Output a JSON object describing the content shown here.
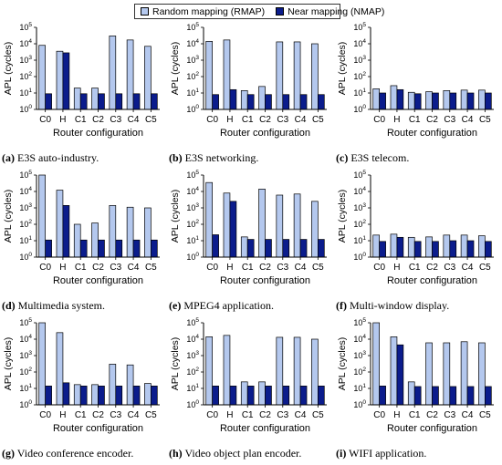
{
  "legend": {
    "rmap_label": "Random mapping (RMAP)",
    "nmap_label": "Near mapping (NMAP)"
  },
  "colors": {
    "rmap": "#b4c8ee",
    "nmap": "#0b1c8c",
    "stroke": "#000000"
  },
  "axis": {
    "ylabel": "APL (cycles)",
    "xlabel": "Router configuration",
    "yticks": [
      {
        "b": "10",
        "e": "0"
      },
      {
        "b": "10",
        "e": "1"
      },
      {
        "b": "10",
        "e": "2"
      },
      {
        "b": "10",
        "e": "3"
      },
      {
        "b": "10",
        "e": "4"
      },
      {
        "b": "10",
        "e": "5"
      }
    ]
  },
  "chart_data": [
    {
      "type": "bar",
      "log_scale": true,
      "ylim": [
        1,
        100000
      ],
      "categories": [
        "C0",
        "H",
        "C1",
        "C2",
        "C3",
        "C4",
        "C5"
      ],
      "caption_letter": "(a)",
      "caption_text": "E3S auto-industry.",
      "series": [
        {
          "name": "Random mapping (RMAP)",
          "values": [
            8000,
            3500,
            20,
            20,
            30000,
            17000,
            7000
          ]
        },
        {
          "name": "Near mapping (NMAP)",
          "values": [
            9,
            2800,
            9,
            9,
            9,
            9,
            9
          ]
        }
      ]
    },
    {
      "type": "bar",
      "log_scale": true,
      "ylim": [
        1,
        100000
      ],
      "categories": [
        "C0",
        "H",
        "C1",
        "C2",
        "C3",
        "C4",
        "C5"
      ],
      "caption_letter": "(b)",
      "caption_text": "E3S networking.",
      "series": [
        {
          "name": "Random mapping (RMAP)",
          "values": [
            14000,
            17000,
            14,
            25,
            13000,
            13000,
            10000
          ]
        },
        {
          "name": "Near mapping (NMAP)",
          "values": [
            8,
            16,
            8,
            8,
            8,
            8,
            8
          ]
        }
      ]
    },
    {
      "type": "bar",
      "log_scale": true,
      "ylim": [
        1,
        100000
      ],
      "categories": [
        "C0",
        "H",
        "C1",
        "C2",
        "C3",
        "C4",
        "C5"
      ],
      "caption_letter": "(c)",
      "caption_text": "E3S telecom.",
      "series": [
        {
          "name": "Random mapping (RMAP)",
          "values": [
            18,
            28,
            11,
            12,
            14,
            15,
            15
          ]
        },
        {
          "name": "Near mapping (NMAP)",
          "values": [
            10,
            16,
            9,
            10,
            10,
            10,
            10
          ]
        }
      ]
    },
    {
      "type": "bar",
      "log_scale": true,
      "ylim": [
        1,
        100000
      ],
      "categories": [
        "C0",
        "H",
        "C1",
        "C2",
        "C3",
        "C4",
        "C5"
      ],
      "caption_letter": "(d)",
      "caption_text": "Multimedia system.",
      "series": [
        {
          "name": "Random mapping (RMAP)",
          "values": [
            100000,
            12000,
            100,
            120,
            1400,
            1100,
            1000
          ]
        },
        {
          "name": "Near mapping (NMAP)",
          "values": [
            11,
            1400,
            11,
            11,
            11,
            11,
            11
          ]
        }
      ]
    },
    {
      "type": "bar",
      "log_scale": true,
      "ylim": [
        1,
        100000
      ],
      "categories": [
        "C0",
        "H",
        "C1",
        "C2",
        "C3",
        "C4",
        "C5"
      ],
      "caption_letter": "(e)",
      "caption_text": "MPEG4 application.",
      "series": [
        {
          "name": "Random mapping (RMAP)",
          "values": [
            35000,
            8000,
            17,
            14000,
            6000,
            7000,
            2500
          ]
        },
        {
          "name": "Near mapping (NMAP)",
          "values": [
            23,
            2500,
            12,
            12,
            12,
            12,
            12
          ]
        }
      ]
    },
    {
      "type": "bar",
      "log_scale": true,
      "ylim": [
        1,
        100000
      ],
      "categories": [
        "C0",
        "H",
        "C1",
        "C2",
        "C3",
        "C4",
        "C5"
      ],
      "caption_letter": "(f)",
      "caption_text": "Multi-window display.",
      "series": [
        {
          "name": "Random mapping (RMAP)",
          "values": [
            22,
            25,
            16,
            17,
            22,
            22,
            20
          ]
        },
        {
          "name": "Near mapping (NMAP)",
          "values": [
            9,
            16,
            9,
            9,
            10,
            10,
            9
          ]
        }
      ]
    },
    {
      "type": "bar",
      "log_scale": true,
      "ylim": [
        1,
        100000
      ],
      "categories": [
        "C0",
        "H",
        "C1",
        "C2",
        "C3",
        "C4",
        "C5"
      ],
      "caption_letter": "(g)",
      "caption_text": "Video conference encoder.",
      "series": [
        {
          "name": "Random mapping (RMAP)",
          "values": [
            100000,
            25000,
            17,
            17,
            300,
            270,
            20
          ]
        },
        {
          "name": "Near mapping (NMAP)",
          "values": [
            14,
            22,
            14,
            14,
            14,
            14,
            14
          ]
        }
      ]
    },
    {
      "type": "bar",
      "log_scale": true,
      "ylim": [
        1,
        100000
      ],
      "categories": [
        "C0",
        "H",
        "C1",
        "C2",
        "C3",
        "C4",
        "C5"
      ],
      "caption_letter": "(h)",
      "caption_text": "Video object plan encoder.",
      "series": [
        {
          "name": "Random mapping (RMAP)",
          "values": [
            14000,
            17000,
            25,
            25,
            13000,
            13000,
            10000
          ]
        },
        {
          "name": "Near mapping (NMAP)",
          "values": [
            14,
            14,
            14,
            14,
            14,
            14,
            14
          ]
        }
      ]
    },
    {
      "type": "bar",
      "log_scale": true,
      "ylim": [
        1,
        100000
      ],
      "categories": [
        "C0",
        "H",
        "C1",
        "C2",
        "C3",
        "C4",
        "C5"
      ],
      "caption_letter": "(i)",
      "caption_text": "WIFI application.",
      "series": [
        {
          "name": "Random mapping (RMAP)",
          "values": [
            100000,
            14000,
            25,
            6000,
            6000,
            7000,
            6000
          ]
        },
        {
          "name": "Near mapping (NMAP)",
          "values": [
            14,
            4500,
            13,
            13,
            13,
            13,
            13
          ]
        }
      ]
    }
  ]
}
